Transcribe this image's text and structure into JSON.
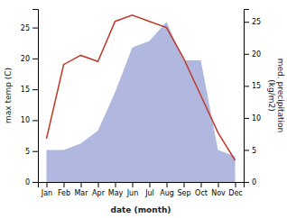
{
  "chart_data": {
    "type": "line",
    "xlabel": "date (month)",
    "ylabel": "max temp (C)",
    "y2label": "med. precipitation\n(kg/m2)",
    "categories": [
      "Jan",
      "Feb",
      "Mar",
      "Apr",
      "May",
      "Jun",
      "Jul",
      "Aug",
      "Sep",
      "Oct",
      "Nov",
      "Dec"
    ],
    "series": [
      {
        "type": "line",
        "color": "#c0392b",
        "values": [
          7,
          19,
          20.5,
          19.5,
          26,
          27,
          26,
          25,
          20,
          14,
          8,
          3.5
        ]
      },
      {
        "type": "area",
        "color": "#b0b8e0",
        "axis": "y2",
        "values": [
          5,
          5,
          6,
          8,
          14,
          21,
          22,
          25,
          19,
          19,
          5,
          4
        ]
      }
    ],
    "ylim": [
      0,
      28
    ],
    "yticks": [
      0,
      5,
      10,
      15,
      20,
      25
    ],
    "y2lim": [
      0,
      27
    ],
    "y2ticks": [
      0,
      5,
      10,
      15,
      20,
      25
    ],
    "grid": false
  }
}
